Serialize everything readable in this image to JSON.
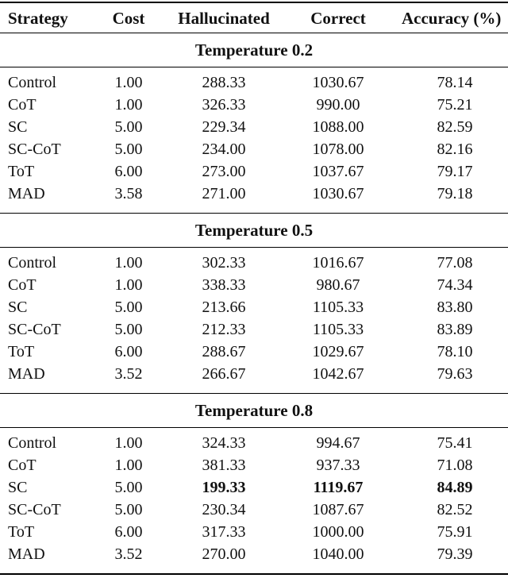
{
  "table": {
    "columns": [
      {
        "key": "strategy",
        "label": "Strategy"
      },
      {
        "key": "cost",
        "label": "Cost"
      },
      {
        "key": "hallucinated",
        "label": "Hallucinated"
      },
      {
        "key": "correct",
        "label": "Correct"
      },
      {
        "key": "accuracy",
        "label": "Accuracy (%)"
      }
    ],
    "sections": [
      {
        "title": "Temperature 0.2",
        "rows": [
          {
            "strategy": "Control",
            "cost": "1.00",
            "hallucinated": "288.33",
            "correct": "1030.67",
            "accuracy": "78.14",
            "bold_cells": []
          },
          {
            "strategy": "CoT",
            "cost": "1.00",
            "hallucinated": "326.33",
            "correct": "990.00",
            "accuracy": "75.21",
            "bold_cells": []
          },
          {
            "strategy": "SC",
            "cost": "5.00",
            "hallucinated": "229.34",
            "correct": "1088.00",
            "accuracy": "82.59",
            "bold_cells": []
          },
          {
            "strategy": "SC-CoT",
            "cost": "5.00",
            "hallucinated": "234.00",
            "correct": "1078.00",
            "accuracy": "82.16",
            "bold_cells": []
          },
          {
            "strategy": "ToT",
            "cost": "6.00",
            "hallucinated": "273.00",
            "correct": "1037.67",
            "accuracy": "79.17",
            "bold_cells": []
          },
          {
            "strategy": "MAD",
            "cost": "3.58",
            "hallucinated": "271.00",
            "correct": "1030.67",
            "accuracy": "79.18",
            "bold_cells": []
          }
        ]
      },
      {
        "title": "Temperature 0.5",
        "rows": [
          {
            "strategy": "Control",
            "cost": "1.00",
            "hallucinated": "302.33",
            "correct": "1016.67",
            "accuracy": "77.08",
            "bold_cells": []
          },
          {
            "strategy": "CoT",
            "cost": "1.00",
            "hallucinated": "338.33",
            "correct": "980.67",
            "accuracy": "74.34",
            "bold_cells": []
          },
          {
            "strategy": "SC",
            "cost": "5.00",
            "hallucinated": "213.66",
            "correct": "1105.33",
            "accuracy": "83.80",
            "bold_cells": []
          },
          {
            "strategy": "SC-CoT",
            "cost": "5.00",
            "hallucinated": "212.33",
            "correct": "1105.33",
            "accuracy": "83.89",
            "bold_cells": []
          },
          {
            "strategy": "ToT",
            "cost": "6.00",
            "hallucinated": "288.67",
            "correct": "1029.67",
            "accuracy": "78.10",
            "bold_cells": []
          },
          {
            "strategy": "MAD",
            "cost": "3.52",
            "hallucinated": "266.67",
            "correct": "1042.67",
            "accuracy": "79.63",
            "bold_cells": []
          }
        ]
      },
      {
        "title": "Temperature 0.8",
        "rows": [
          {
            "strategy": "Control",
            "cost": "1.00",
            "hallucinated": "324.33",
            "correct": "994.67",
            "accuracy": "75.41",
            "bold_cells": []
          },
          {
            "strategy": "CoT",
            "cost": "1.00",
            "hallucinated": "381.33",
            "correct": "937.33",
            "accuracy": "71.08",
            "bold_cells": []
          },
          {
            "strategy": "SC",
            "cost": "5.00",
            "hallucinated": "199.33",
            "correct": "1119.67",
            "accuracy": "84.89",
            "bold_cells": [
              "hallucinated",
              "correct",
              "accuracy"
            ]
          },
          {
            "strategy": "SC-CoT",
            "cost": "5.00",
            "hallucinated": "230.34",
            "correct": "1087.67",
            "accuracy": "82.52",
            "bold_cells": []
          },
          {
            "strategy": "ToT",
            "cost": "6.00",
            "hallucinated": "317.33",
            "correct": "1000.00",
            "accuracy": "75.91",
            "bold_cells": []
          },
          {
            "strategy": "MAD",
            "cost": "3.52",
            "hallucinated": "270.00",
            "correct": "1040.00",
            "accuracy": "79.39",
            "bold_cells": []
          }
        ]
      }
    ]
  },
  "colors": {
    "text": "#111111",
    "rule": "#000000",
    "background": "#ffffff"
  }
}
